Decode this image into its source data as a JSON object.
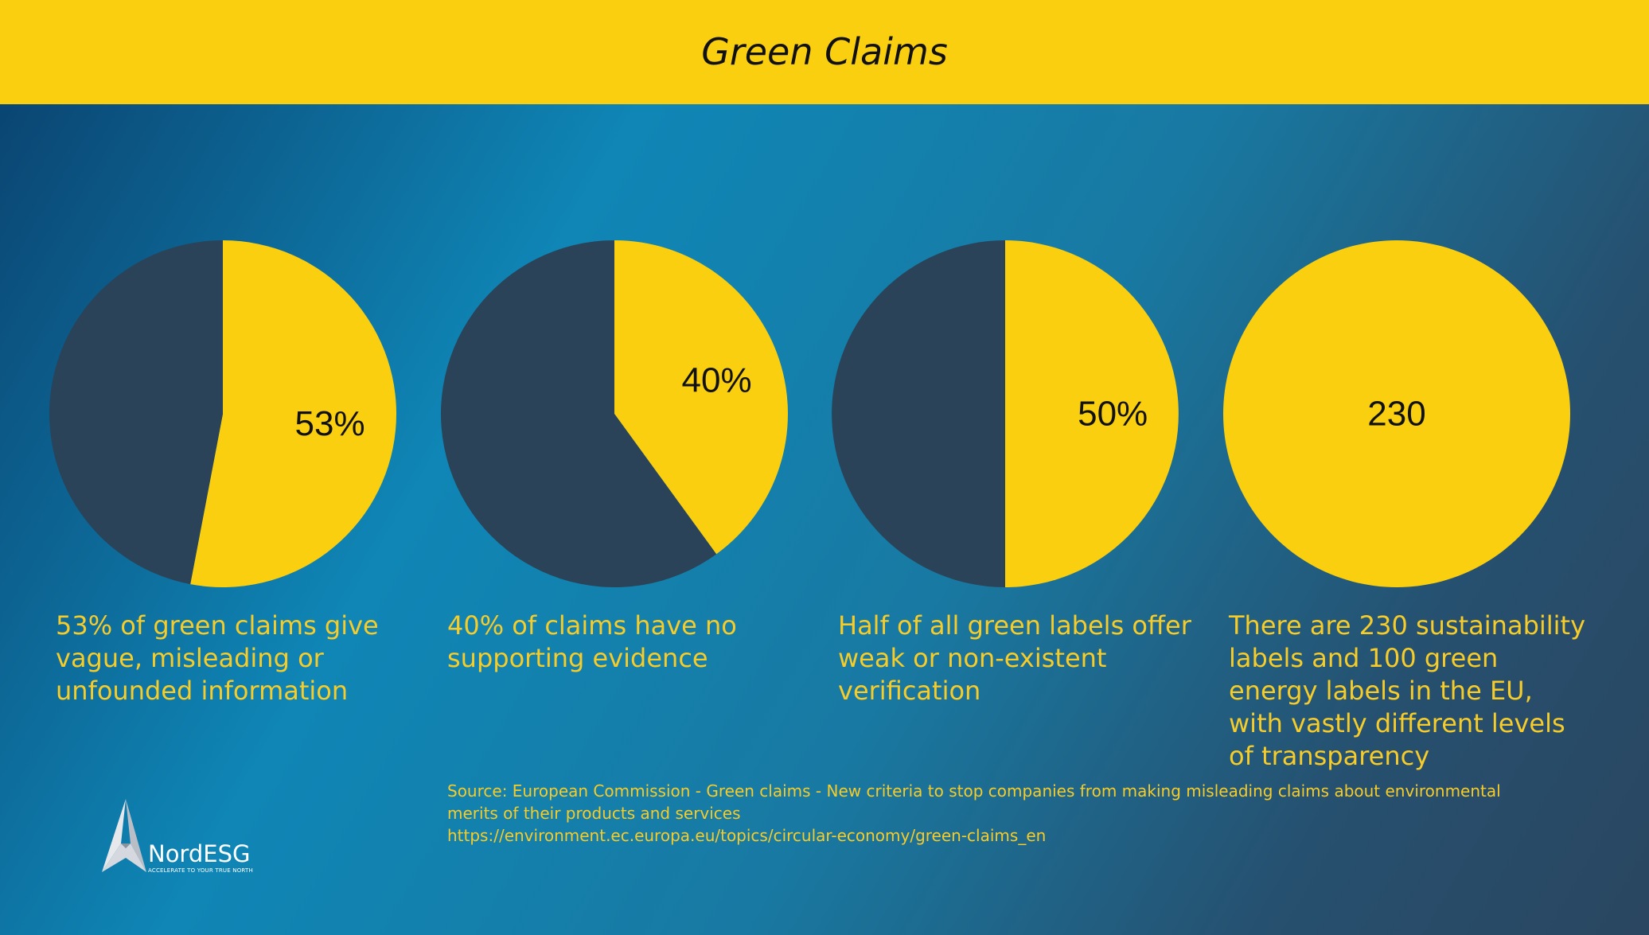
{
  "header": {
    "title": "Green Claims"
  },
  "colors": {
    "highlight": "#f9cf10",
    "remainder": "#2a4359"
  },
  "chart_data": [
    {
      "type": "pie",
      "slices": [
        {
          "value": 53
        },
        {
          "value": 47
        }
      ],
      "label": "53%",
      "caption": "53% of green claims give vague, misleading or unfounded information"
    },
    {
      "type": "pie",
      "slices": [
        {
          "value": 40
        },
        {
          "value": 60
        }
      ],
      "label": "40%",
      "caption": "40% of claims have no supporting evidence"
    },
    {
      "type": "pie",
      "slices": [
        {
          "value": 50
        },
        {
          "value": 50
        }
      ],
      "label": "50%",
      "caption": "Half of all green labels offer weak or non-existent verification"
    },
    {
      "type": "pie",
      "slices": [
        {
          "value": 100
        }
      ],
      "label": "230",
      "caption": "There are 230 sustainability labels and 100 green energy labels in the EU, with vastly different levels of transparency"
    }
  ],
  "source": {
    "line1": "Source: European Commission - Green claims - New criteria to stop companies from making misleading claims about environmental",
    "line2": "merits of their products and services",
    "url": "https://environment.ec.europa.eu/topics/circular-economy/green-claims_en"
  },
  "logo": {
    "name": "NordESG",
    "tagline": "ACCELERATE TO YOUR TRUE NORTH"
  }
}
